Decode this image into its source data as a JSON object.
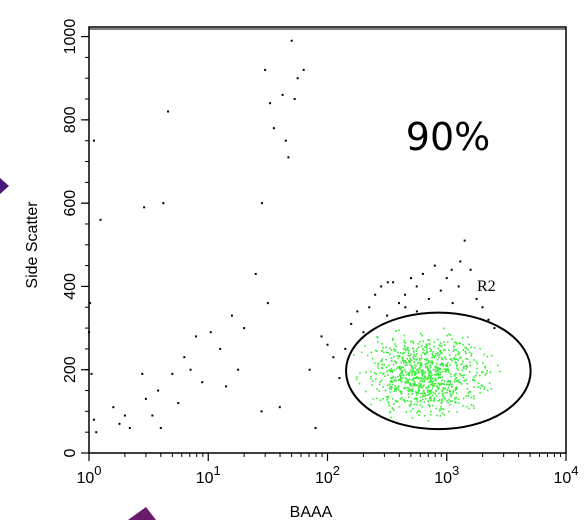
{
  "chart_data": {
    "type": "scatter",
    "title": "",
    "xlabel": "BAAA",
    "ylabel": "Side Scatter",
    "x_scale": "log",
    "xlim": [
      1,
      10000
    ],
    "ylim": [
      0,
      1023
    ],
    "x_ticks": [
      {
        "value": 1,
        "base": "10",
        "exp": "0"
      },
      {
        "value": 10,
        "base": "10",
        "exp": "1"
      },
      {
        "value": 100,
        "base": "10",
        "exp": "2"
      },
      {
        "value": 1000,
        "base": "10",
        "exp": "3"
      },
      {
        "value": 10000,
        "base": "10",
        "exp": "4"
      }
    ],
    "y_ticks": [
      {
        "value": 0,
        "label": "0"
      },
      {
        "value": 200,
        "label": "200"
      },
      {
        "value": 400,
        "label": "400"
      },
      {
        "value": 600,
        "label": "600"
      },
      {
        "value": 800,
        "label": "800"
      },
      {
        "value": 1000,
        "label": "1000"
      }
    ],
    "grid": false,
    "annotation": "90%",
    "gate": {
      "label": "R2",
      "center": [
        850,
        190
      ],
      "x_range": [
        150,
        5300
      ],
      "y_range": [
        50,
        330
      ],
      "color": "#000000"
    },
    "series": [
      {
        "color": "#000000",
        "points": [
          [
            1.1,
            750
          ],
          [
            1.02,
            360
          ],
          [
            1.0,
            290
          ],
          [
            1.05,
            190
          ],
          [
            1.1,
            80
          ],
          [
            1.15,
            50
          ],
          [
            1.25,
            560
          ],
          [
            1.6,
            110
          ],
          [
            1.8,
            70
          ],
          [
            2.0,
            90
          ],
          [
            2.2,
            60
          ],
          [
            2.8,
            190
          ],
          [
            2.9,
            590
          ],
          [
            3.0,
            130
          ],
          [
            3.4,
            90
          ],
          [
            3.8,
            150
          ],
          [
            4.0,
            60
          ],
          [
            4.2,
            600
          ],
          [
            4.6,
            820
          ],
          [
            5.0,
            190
          ],
          [
            5.6,
            120
          ],
          [
            6.3,
            230
          ],
          [
            7.1,
            200
          ],
          [
            7.9,
            280
          ],
          [
            8.9,
            170
          ],
          [
            10.5,
            290
          ],
          [
            12.6,
            250
          ],
          [
            14.1,
            160
          ],
          [
            15.8,
            330
          ],
          [
            17.8,
            200
          ],
          [
            20,
            300
          ],
          [
            25,
            430
          ],
          [
            28,
            100
          ],
          [
            28.2,
            600
          ],
          [
            30,
            920
          ],
          [
            31.6,
            360
          ],
          [
            33,
            840
          ],
          [
            35.5,
            780
          ],
          [
            39.8,
            110
          ],
          [
            42,
            860
          ],
          [
            44.7,
            750
          ],
          [
            47,
            710
          ],
          [
            50.1,
            990
          ],
          [
            53,
            850
          ],
          [
            56.2,
            900
          ],
          [
            63.1,
            920
          ],
          [
            70.8,
            200
          ],
          [
            79.4,
            60
          ],
          [
            89.1,
            280
          ],
          [
            100,
            260
          ],
          [
            112,
            230
          ],
          [
            126,
            180
          ],
          [
            141,
            250
          ],
          [
            158,
            310
          ],
          [
            178,
            340
          ],
          [
            200,
            290
          ],
          [
            224,
            350
          ],
          [
            251,
            380
          ],
          [
            282,
            400
          ],
          [
            316,
            330
          ],
          [
            355,
            410
          ],
          [
            398,
            360
          ],
          [
            447,
            380
          ],
          [
            501,
            420
          ],
          [
            562,
            340
          ],
          [
            631,
            430
          ],
          [
            708,
            370
          ],
          [
            794,
            450
          ],
          [
            891,
            390
          ],
          [
            1000,
            420
          ],
          [
            1122,
            360
          ],
          [
            1259,
            400
          ],
          [
            1413,
            510
          ],
          [
            1585,
            440
          ],
          [
            1778,
            370
          ],
          [
            1995,
            350
          ],
          [
            2239,
            320
          ],
          [
            2512,
            300
          ],
          [
            1100,
            440
          ],
          [
            1300,
            460
          ],
          [
            560,
            400
          ],
          [
            450,
            350
          ],
          [
            320,
            410
          ]
        ]
      },
      {
        "name": "R2",
        "color": "#33ee33",
        "points": []
      }
    ]
  }
}
